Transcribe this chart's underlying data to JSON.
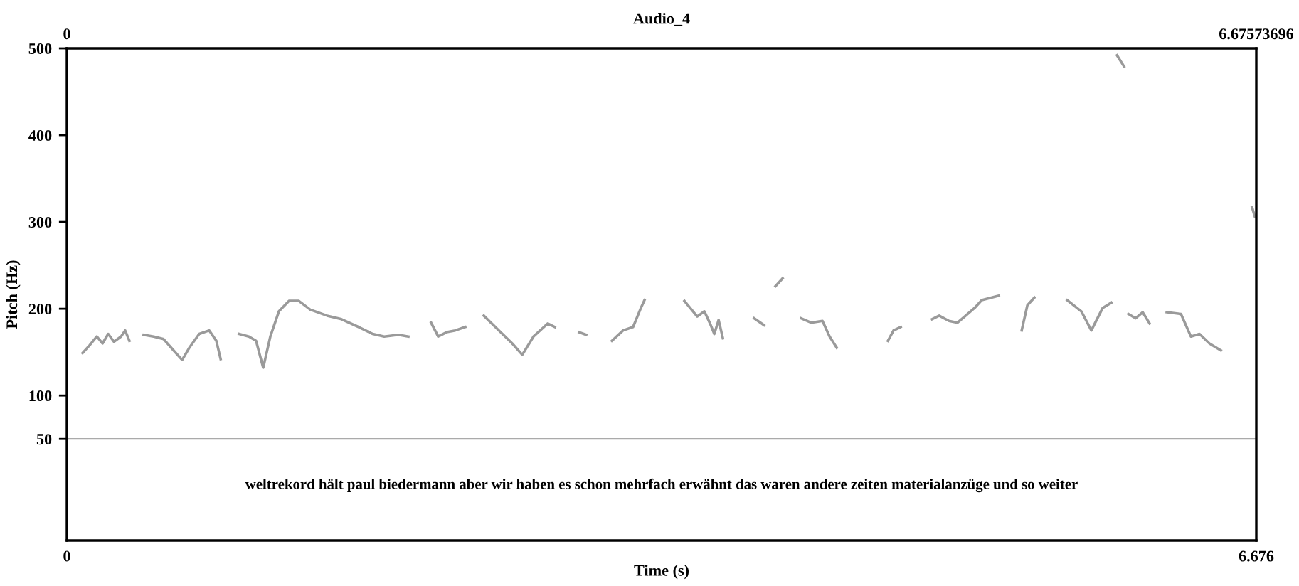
{
  "chart_data": {
    "type": "line",
    "title": "Audio_4",
    "xlabel": "Time (s)",
    "ylabel": "Pitch (Hz)",
    "xlim": [
      0,
      6.676
    ],
    "xticks": [
      0,
      6.676
    ],
    "x2lim": [
      0,
      6.67573696
    ],
    "x2ticks": [
      0,
      6.67573696
    ],
    "ylim": [
      -67,
      500
    ],
    "yticks": [
      50,
      100,
      200,
      300,
      400,
      500
    ],
    "ref_lines": [
      {
        "axis": "y",
        "value": 50,
        "color": "#aaaaaa"
      }
    ],
    "annotations": [
      "weltrekord hält paul biedermann aber wir haben es schon mehrfach erwähnt das waren andere zeiten materialanzüge und so weiter"
    ],
    "grid": false,
    "legend": false,
    "marker": "none",
    "line_style": "solid",
    "series": [
      {
        "color": "#9a9a9a",
        "x": [
          0.088,
          0.128,
          0.168,
          0.2,
          0.232,
          0.264,
          0.304,
          0.327,
          0.351,
          0.39,
          0.431,
          0.487,
          0.543,
          0.599,
          0.647,
          0.687,
          0.743,
          0.799,
          0.839,
          0.863,
          0.91,
          0.966,
          1.022,
          1.062,
          1.102,
          1.142,
          1.19,
          1.246,
          1.302,
          1.366,
          1.461,
          1.541,
          1.637,
          1.717,
          1.781,
          1.861,
          1.917,
          1.98,
          2.044,
          2.084,
          2.132,
          2.18,
          2.236,
          2.29,
          2.34,
          2.42,
          2.5,
          2.556,
          2.619,
          2.699,
          2.739,
          2.8,
          2.875,
          2.915,
          2.99,
          3.059,
          3.122,
          3.178,
          3.218,
          3.242,
          3.35,
          3.466,
          3.498,
          3.538,
          3.578,
          3.61,
          3.634,
          3.658,
          3.682,
          3.77,
          3.857,
          3.913,
          3.95,
          3.977,
          4.017,
          4.06,
          4.121,
          4.177,
          4.241,
          4.281,
          4.321,
          4.45,
          4.608,
          4.64,
          4.68,
          4.77,
          4.856,
          4.896,
          4.951,
          4.999,
          5.039,
          5.095,
          5.135,
          5.231,
          5.3,
          5.359,
          5.391,
          5.431,
          5.52,
          5.614,
          5.694,
          5.75,
          5.814,
          5.862,
          5.88,
          5.894,
          5.934,
          5.945,
          5.958,
          5.998,
          6.038,
          6.077,
          6.12,
          6.173,
          6.253,
          6.309,
          6.357,
          6.413,
          6.477,
          6.56,
          6.652,
          6.668
        ],
        "values": [
          149,
          158,
          168,
          160,
          171,
          162,
          168,
          175,
          163,
          null,
          170,
          168,
          165,
          152,
          141,
          155,
          171,
          175,
          163,
          142,
          null,
          171,
          168,
          163,
          132,
          168,
          197,
          209,
          209,
          199,
          192,
          188,
          179,
          171,
          168,
          170,
          168,
          null,
          184,
          168,
          173,
          175,
          179,
          null,
          192,
          176,
          160,
          147,
          168,
          183,
          179,
          null,
          173,
          170,
          null,
          163,
          175,
          179,
          199,
          210,
          null,
          209,
          201,
          191,
          197,
          183,
          171,
          187,
          166,
          null,
          189,
          181,
          null,
          226,
          235,
          null,
          189,
          184,
          186,
          168,
          155,
          null,
          163,
          175,
          179,
          null,
          188,
          192,
          186,
          184,
          191,
          201,
          210,
          215,
          null,
          175,
          204,
          213,
          null,
          210,
          197,
          175,
          201,
          207,
          null,
          492,
          479,
          null,
          194,
          189,
          196,
          183,
          null,
          196,
          194,
          168,
          171,
          160,
          152,
          null,
          317,
          306
        ]
      }
    ]
  }
}
